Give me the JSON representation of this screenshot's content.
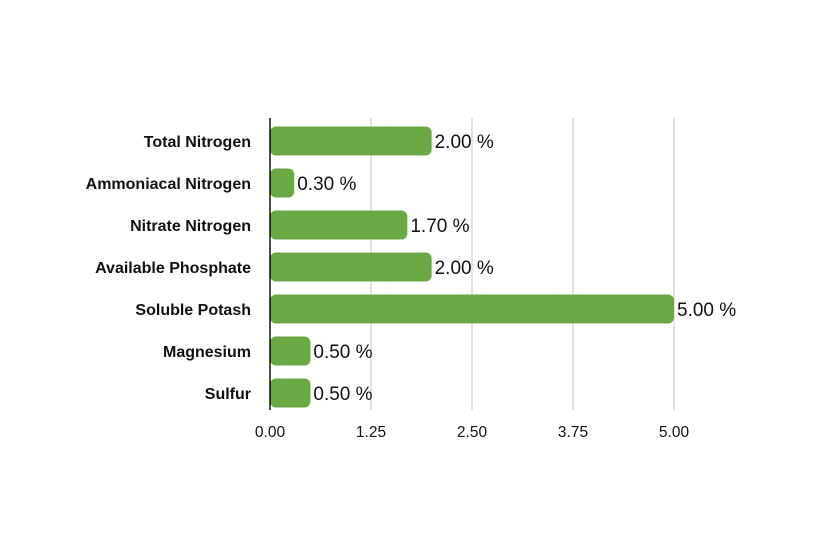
{
  "chart_data": {
    "type": "bar",
    "orientation": "horizontal",
    "categories": [
      "Total Nitrogen",
      "Ammoniacal Nitrogen",
      "Nitrate Nitrogen",
      "Available Phosphate",
      "Soluble Potash",
      "Magnesium",
      "Sulfur"
    ],
    "values": [
      2.0,
      0.3,
      1.7,
      2.0,
      5.0,
      0.5,
      0.5
    ],
    "data_labels": [
      "2.00 %",
      "0.30 %",
      "1.70 %",
      "2.00 %",
      "5.00 %",
      "0.50 %",
      "0.50 %"
    ],
    "x_ticks": [
      "0.00",
      "1.25",
      "2.50",
      "3.75",
      "5.00"
    ],
    "xlim": [
      0,
      5
    ],
    "grid": "vertical",
    "legend": "none",
    "bar_color": "#69a843"
  }
}
